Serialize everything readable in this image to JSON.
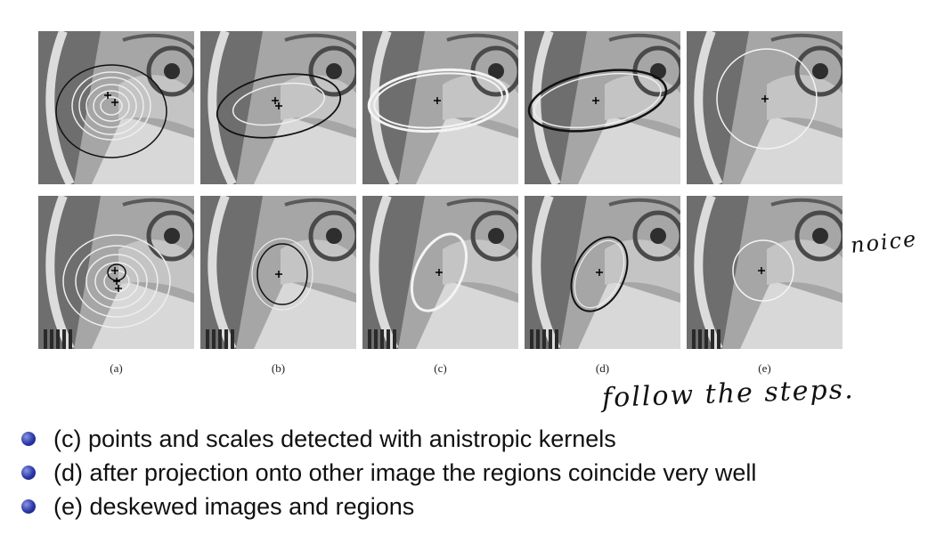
{
  "figure": {
    "captions": [
      "(a)",
      "(b)",
      "(c)",
      "(d)",
      "(e)"
    ],
    "rows": [
      "top",
      "bottom"
    ]
  },
  "annotations": {
    "noise": "noice",
    "follow": "follow the steps."
  },
  "bullets": [
    "(c) points and scales detected with anistropic kernels",
    "(d) after projection onto other image the regions coincide very well",
    "(e) deskewed images and regions"
  ],
  "colors": {
    "bullet": "#2b36a8",
    "photo": "#9a9a9a"
  }
}
